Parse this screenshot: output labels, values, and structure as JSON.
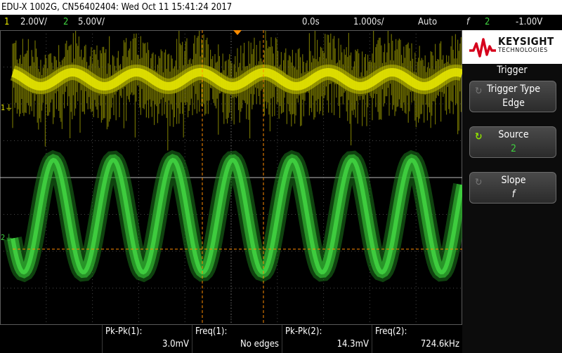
{
  "title": "EDU-X 1002G, CN56402404: Wed Oct 11 15:41:24 2017",
  "status": {
    "ch1_num": "1",
    "ch1_scale": "2.00V/",
    "ch2_num": "2",
    "ch2_scale": "5.00V/",
    "time_pos": "0.0s",
    "time_scale": "1.000s/",
    "trigger_mode": "Auto",
    "trigger_slope_symbol": "f",
    "trigger_source": "2",
    "trigger_level": "-1.00V"
  },
  "logo": {
    "name": "KEYSIGHT",
    "sub": "TECHNOLOGIES"
  },
  "menu": {
    "title": "Trigger",
    "softkeys": [
      {
        "label": "Trigger Type",
        "value": "Edge"
      },
      {
        "label": "Source",
        "value": "2"
      },
      {
        "label": "Slope",
        "value": "f"
      }
    ]
  },
  "channel_markers": {
    "ch1": "1",
    "ch2": "2"
  },
  "measurements": [
    {
      "label": "Pk-Pk(1):",
      "value": "3.0mV"
    },
    {
      "label": "Freq(1):",
      "value": "No edges"
    },
    {
      "label": "Pk-Pk(2):",
      "value": "14.3mV"
    },
    {
      "label": "Freq(2):",
      "value": "724.6kHz"
    }
  ],
  "colors": {
    "ch1": "#e8e800",
    "ch2": "#3fcf3f",
    "trigger_marker": "#ff8c00",
    "grid": "#5a5a5a"
  }
}
